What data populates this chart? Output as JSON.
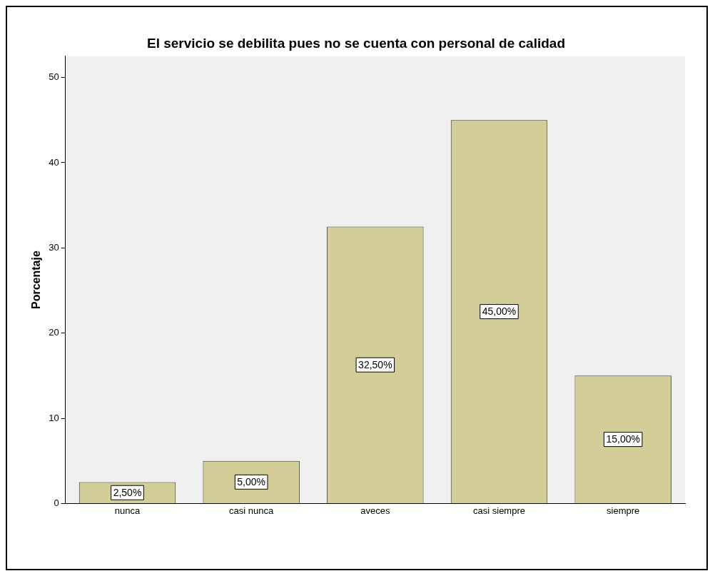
{
  "chart_data": {
    "type": "bar",
    "title": "El servicio se debilita pues no se cuenta con personal de calidad",
    "ylabel": "Porcentaje",
    "categories": [
      "nunca",
      "casi nunca",
      "aveces",
      "casi siempre",
      "siempre"
    ],
    "values": [
      2.5,
      5,
      32.5,
      45,
      15
    ],
    "value_labels": [
      "2,50%",
      "5,00%",
      "32,50%",
      "45,00%",
      "15,00%"
    ],
    "color": "#d3ce97",
    "ylim": [
      0,
      52.5
    ],
    "yticks": [
      0,
      10,
      20,
      30,
      40,
      50
    ],
    "grid": false,
    "legend": false
  }
}
